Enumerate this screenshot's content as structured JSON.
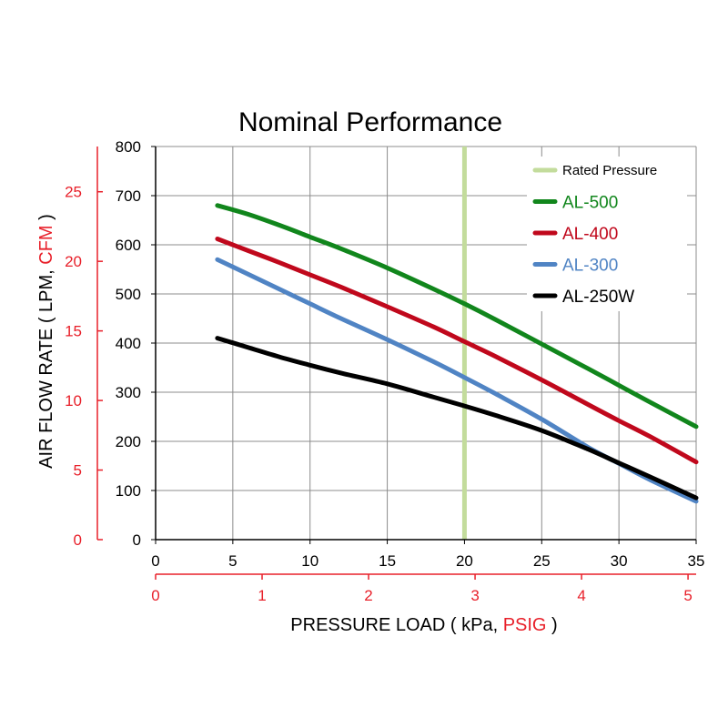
{
  "chart_data": {
    "type": "line",
    "title": "Nominal Performance",
    "xlabel": {
      "prefix": "PRESSURE LOAD ( kPa, ",
      "highlight": "PSIG",
      "suffix": " )"
    },
    "ylabel": {
      "prefix": "AIR FLOW RATE ( LPM, ",
      "highlight": "CFM",
      "suffix": " )"
    },
    "xlim": [
      0,
      35
    ],
    "ylim": [
      0,
      800
    ],
    "x_ticks": [
      "0",
      "5",
      "10",
      "15",
      "20",
      "25",
      "30",
      "35"
    ],
    "y_ticks": [
      "0",
      "100",
      "200",
      "300",
      "400",
      "500",
      "600",
      "700",
      "800"
    ],
    "x2_ticks": [
      "0",
      "1",
      "2",
      "3",
      "4",
      "5"
    ],
    "x2_values": [
      0,
      1,
      2,
      3,
      4,
      5
    ],
    "x2_scale_kpa_per_unit": 6.895,
    "y2_ticks": [
      "0",
      "5",
      "10",
      "15",
      "20",
      "25"
    ],
    "y2_values": [
      0,
      5,
      10,
      15,
      20,
      25
    ],
    "y2_scale_lpm_per_unit": 28.317,
    "grid": true,
    "legend_position": "top-right",
    "rated_pressure": {
      "name": "Rated Pressure",
      "x": 20,
      "color": "#c3dc9c"
    },
    "series": [
      {
        "name": "AL-500",
        "color": "#11861c",
        "x": [
          4,
          6,
          8,
          10,
          12,
          15,
          18,
          20,
          22,
          25,
          28,
          30,
          32,
          35
        ],
        "y": [
          680,
          662,
          640,
          616,
          592,
          553,
          510,
          480,
          448,
          398,
          348,
          314,
          280,
          230
        ]
      },
      {
        "name": "AL-400",
        "color": "#c0081c",
        "x": [
          4,
          6,
          8,
          10,
          12,
          15,
          18,
          20,
          22,
          25,
          28,
          30,
          32,
          35
        ],
        "y": [
          612,
          588,
          564,
          539,
          514,
          474,
          433,
          403,
          373,
          325,
          275,
          242,
          210,
          158
        ]
      },
      {
        "name": "AL-300",
        "color": "#5084c4",
        "x": [
          4,
          6,
          8,
          10,
          12,
          15,
          18,
          20,
          22,
          25,
          28,
          30,
          32,
          35
        ],
        "y": [
          570,
          540,
          510,
          480,
          450,
          407,
          362,
          330,
          297,
          245,
          188,
          155,
          122,
          78
        ]
      },
      {
        "name": "AL-250W",
        "color": "#000000",
        "x": [
          4,
          6,
          8,
          10,
          12,
          15,
          18,
          20,
          22,
          25,
          28,
          30,
          32,
          35
        ],
        "y": [
          410,
          391,
          372,
          355,
          339,
          317,
          290,
          272,
          253,
          222,
          184,
          156,
          128,
          85
        ]
      }
    ]
  }
}
